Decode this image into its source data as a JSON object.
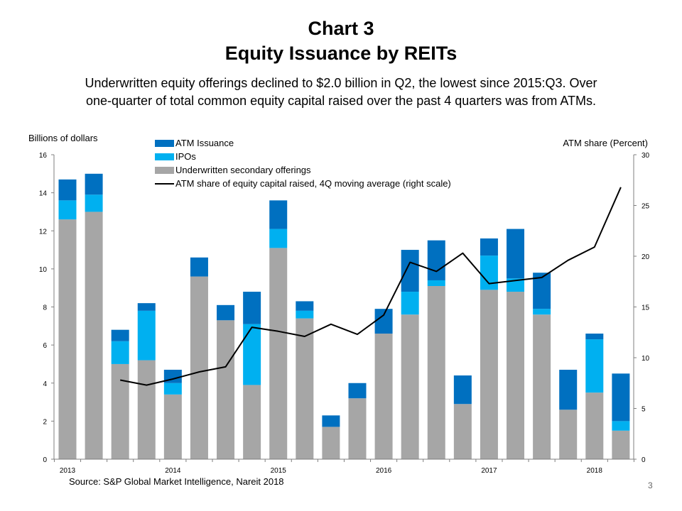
{
  "page": {
    "title_line1": "Chart 3",
    "title_line2": "Equity Issuance by REITs",
    "subtitle_line1": "Underwritten  equity offerings declined to $2.0 billion in Q2, the lowest since 2015:Q3. Over",
    "subtitle_line2": "one-quarter  of total common  equity capital raised over the past 4 quarters was from ATMs.",
    "source": "Source: S&P Global Market Intelligence, Nareit 2018",
    "page_number": "3"
  },
  "colors": {
    "atm": "#0070C0",
    "ipo": "#00B0F0",
    "secondary": "#A6A6A6",
    "line": "#000000",
    "axis": "#7F7F7F"
  },
  "chart_data": {
    "type": "bar",
    "stacked": true,
    "ylabel": "Billions of dollars",
    "ylabel_right": "ATM share (Percent)",
    "ylim": [
      0,
      16
    ],
    "ylim_right": [
      0,
      30
    ],
    "yticks": [
      0,
      2,
      4,
      6,
      8,
      10,
      12,
      14,
      16
    ],
    "yticks_right": [
      0,
      5,
      10,
      15,
      20,
      25,
      30
    ],
    "year_labels": [
      {
        "label": "2013",
        "index": 0
      },
      {
        "label": "2014",
        "index": 4
      },
      {
        "label": "2015",
        "index": 8
      },
      {
        "label": "2016",
        "index": 12
      },
      {
        "label": "2017",
        "index": 16
      },
      {
        "label": "2018",
        "index": 20
      }
    ],
    "categories": [
      "2013:Q1",
      "2013:Q2",
      "2013:Q3",
      "2013:Q4",
      "2014:Q1",
      "2014:Q2",
      "2014:Q3",
      "2014:Q4",
      "2015:Q1",
      "2015:Q2",
      "2015:Q3",
      "2015:Q4",
      "2016:Q1",
      "2016:Q2",
      "2016:Q3",
      "2016:Q4",
      "2017:Q1",
      "2017:Q2",
      "2017:Q3",
      "2017:Q4",
      "2018:Q1",
      "2018:Q2"
    ],
    "series": [
      {
        "name": "Underwritten secondary offerings",
        "key": "secondary",
        "values": [
          12.6,
          13.0,
          5.0,
          5.2,
          3.4,
          9.6,
          7.3,
          3.9,
          11.1,
          7.4,
          1.7,
          3.2,
          6.6,
          7.6,
          9.1,
          2.9,
          8.9,
          8.8,
          7.6,
          2.6,
          3.5,
          1.5
        ]
      },
      {
        "name": "IPOs",
        "key": "ipo",
        "values": [
          1.0,
          0.9,
          1.2,
          2.6,
          0.6,
          0.0,
          0.0,
          3.2,
          1.0,
          0.4,
          0.0,
          0.0,
          0.0,
          1.2,
          0.3,
          0.0,
          1.8,
          0.7,
          0.3,
          0.0,
          2.8,
          0.5
        ]
      },
      {
        "name": "ATM Issuance",
        "key": "atm",
        "values": [
          1.1,
          1.1,
          0.6,
          0.4,
          0.7,
          1.0,
          0.8,
          1.7,
          1.5,
          0.5,
          0.6,
          0.8,
          1.3,
          2.2,
          2.1,
          1.5,
          0.9,
          2.6,
          1.9,
          2.1,
          0.3,
          2.5
        ]
      }
    ],
    "line": {
      "name": "ATM share of equity capital raised, 4Q moving average (right scale)",
      "start_index": 2,
      "values": [
        7.8,
        7.3,
        7.9,
        8.6,
        9.1,
        13.0,
        12.6,
        12.1,
        13.3,
        12.3,
        14.2,
        19.4,
        18.5,
        20.3,
        17.3,
        17.6,
        17.9,
        19.6,
        20.9,
        26.8
      ]
    },
    "legend": {
      "position": "top-center",
      "items": [
        {
          "label": "ATM Issuance",
          "key": "atm",
          "kind": "box"
        },
        {
          "label": "IPOs",
          "key": "ipo",
          "kind": "box"
        },
        {
          "label": "Underwritten secondary offerings",
          "key": "secondary",
          "kind": "box"
        },
        {
          "label": "ATM share of equity capital raised, 4Q moving average (right scale)",
          "key": "line",
          "kind": "line"
        }
      ]
    },
    "grid": false
  }
}
